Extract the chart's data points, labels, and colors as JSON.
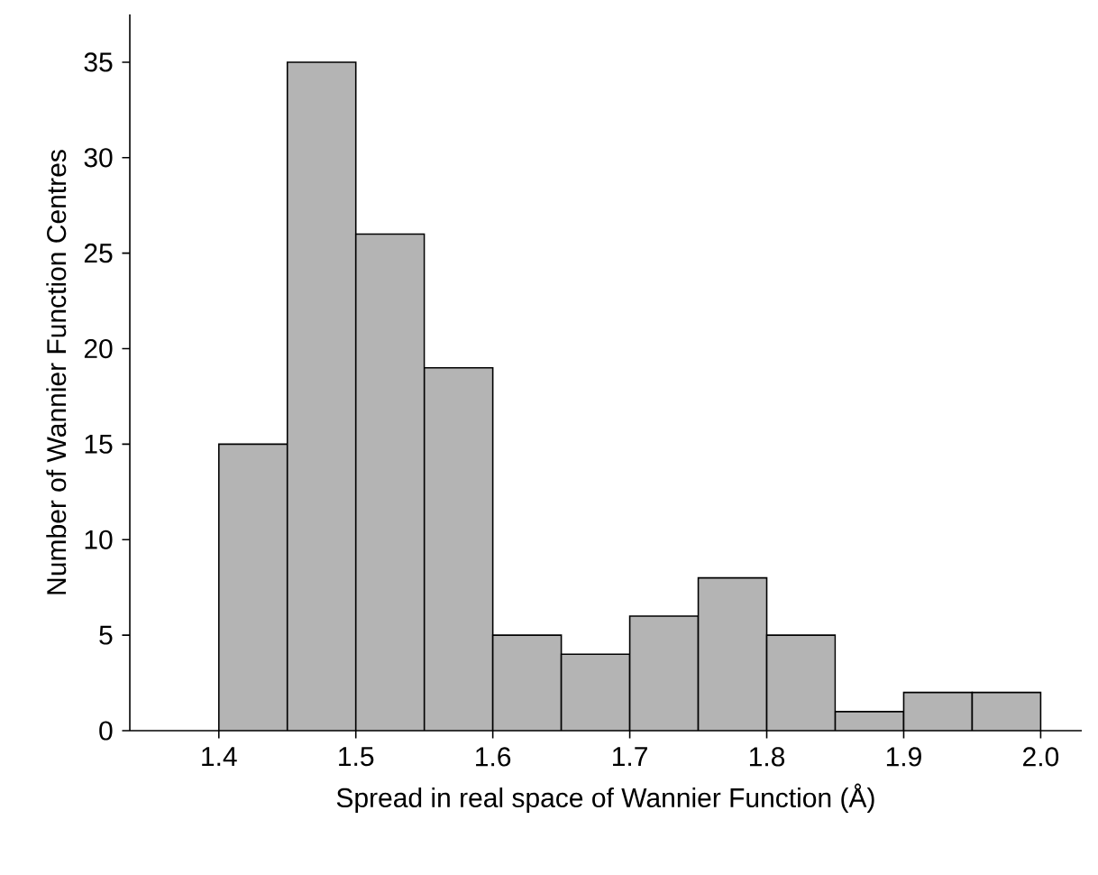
{
  "chart_data": {
    "type": "histogram",
    "xlabel": "Spread in real space of Wannier Function (Å)",
    "ylabel": "Number of Wannier Function Centres",
    "bins": [
      1.4,
      1.45,
      1.5,
      1.55,
      1.6,
      1.65,
      1.7,
      1.75,
      1.8,
      1.85,
      1.9,
      1.95,
      2.0
    ],
    "values": [
      15,
      35,
      26,
      19,
      5,
      4,
      6,
      8,
      5,
      1,
      2,
      2
    ],
    "color": "#b4b4b4",
    "xlim": [
      1.335,
      2.03
    ],
    "ylim": [
      0,
      37.5
    ],
    "xticks": [
      1.4,
      1.5,
      1.6,
      1.7,
      1.8,
      1.9,
      {
        "value": 2.0,
        "label": "2.0"
      }
    ],
    "yticks": [
      0,
      5,
      10,
      15,
      20,
      25,
      30,
      35
    ],
    "grid": false
  }
}
